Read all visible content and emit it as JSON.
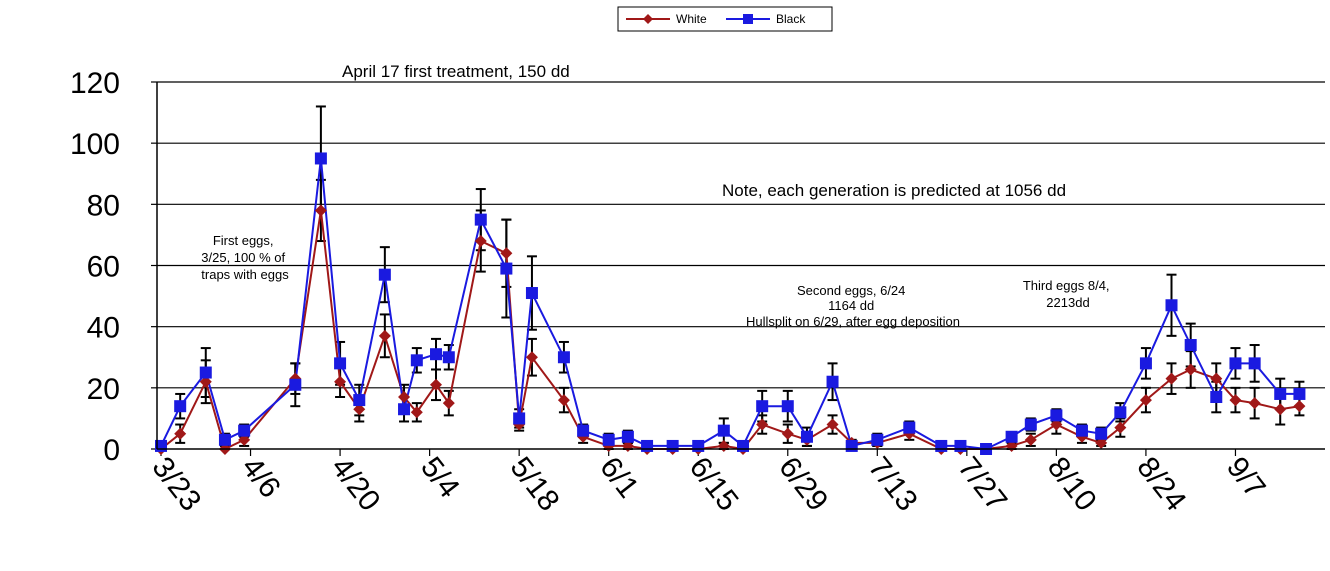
{
  "chart_data": {
    "type": "line",
    "ylabel": "",
    "ylim": [
      0,
      120
    ],
    "yticks": [
      0,
      20,
      40,
      60,
      80,
      100,
      120
    ],
    "xlim": [
      "2008-03-23",
      "2008-09-21"
    ],
    "xticks": [
      "3/23",
      "4/6",
      "4/20",
      "5/4",
      "5/18",
      "6/1",
      "6/15",
      "6/29",
      "7/13",
      "7/27",
      "8/10",
      "8/24",
      "9/7"
    ],
    "grid": "horizontal",
    "legend": "top-center",
    "series": [
      {
        "name": "White",
        "color": "#a01818",
        "marker": "diamond",
        "points": [
          {
            "x": "2008-03-23",
            "y": 0,
            "err": 0
          },
          {
            "x": "2008-03-26",
            "y": 5,
            "err": 3
          },
          {
            "x": "2008-03-30",
            "y": 22,
            "err": 7
          },
          {
            "x": "2008-04-02",
            "y": 0,
            "err": 0
          },
          {
            "x": "2008-04-05",
            "y": 3,
            "err": 2
          },
          {
            "x": "2008-04-13",
            "y": 23,
            "err": 5
          },
          {
            "x": "2008-04-17",
            "y": 78,
            "err": 10
          },
          {
            "x": "2008-04-20",
            "y": 22,
            "err": 5
          },
          {
            "x": "2008-04-23",
            "y": 13,
            "err": 4
          },
          {
            "x": "2008-04-27",
            "y": 37,
            "err": 7
          },
          {
            "x": "2008-04-30",
            "y": 17,
            "err": 4
          },
          {
            "x": "2008-05-02",
            "y": 12,
            "err": 3
          },
          {
            "x": "2008-05-05",
            "y": 21,
            "err": 5
          },
          {
            "x": "2008-05-07",
            "y": 15,
            "err": 4
          },
          {
            "x": "2008-05-12",
            "y": 68,
            "err": 10
          },
          {
            "x": "2008-05-16",
            "y": 64,
            "err": 11
          },
          {
            "x": "2008-05-18",
            "y": 8,
            "err": 2
          },
          {
            "x": "2008-05-20",
            "y": 30,
            "err": 6
          },
          {
            "x": "2008-05-25",
            "y": 16,
            "err": 4
          },
          {
            "x": "2008-05-28",
            "y": 4,
            "err": 2
          },
          {
            "x": "2008-06-01",
            "y": 1,
            "err": 1
          },
          {
            "x": "2008-06-04",
            "y": 1,
            "err": 1
          },
          {
            "x": "2008-06-07",
            "y": 0,
            "err": 0
          },
          {
            "x": "2008-06-11",
            "y": 0,
            "err": 0
          },
          {
            "x": "2008-06-15",
            "y": 0,
            "err": 0
          },
          {
            "x": "2008-06-19",
            "y": 1,
            "err": 1
          },
          {
            "x": "2008-06-22",
            "y": 0,
            "err": 0
          },
          {
            "x": "2008-06-25",
            "y": 8,
            "err": 3
          },
          {
            "x": "2008-06-29",
            "y": 5,
            "err": 3
          },
          {
            "x": "2008-07-02",
            "y": 3,
            "err": 2
          },
          {
            "x": "2008-07-06",
            "y": 8,
            "err": 3
          },
          {
            "x": "2008-07-09",
            "y": 2,
            "err": 1
          },
          {
            "x": "2008-07-13",
            "y": 2,
            "err": 1
          },
          {
            "x": "2008-07-18",
            "y": 5,
            "err": 2
          },
          {
            "x": "2008-07-23",
            "y": 0,
            "err": 0
          },
          {
            "x": "2008-07-26",
            "y": 0,
            "err": 0
          },
          {
            "x": "2008-07-30",
            "y": 0,
            "err": 0
          },
          {
            "x": "2008-08-03",
            "y": 1,
            "err": 1
          },
          {
            "x": "2008-08-06",
            "y": 3,
            "err": 2
          },
          {
            "x": "2008-08-10",
            "y": 8,
            "err": 3
          },
          {
            "x": "2008-08-14",
            "y": 4,
            "err": 2
          },
          {
            "x": "2008-08-17",
            "y": 2,
            "err": 1
          },
          {
            "x": "2008-08-20",
            "y": 7,
            "err": 3
          },
          {
            "x": "2008-08-24",
            "y": 16,
            "err": 4
          },
          {
            "x": "2008-08-28",
            "y": 23,
            "err": 5
          },
          {
            "x": "2008-08-31",
            "y": 26,
            "err": 6
          },
          {
            "x": "2008-09-04",
            "y": 23,
            "err": 5
          },
          {
            "x": "2008-09-07",
            "y": 16,
            "err": 4
          },
          {
            "x": "2008-09-10",
            "y": 15,
            "err": 5
          },
          {
            "x": "2008-09-14",
            "y": 13,
            "err": 5
          },
          {
            "x": "2008-09-17",
            "y": 14,
            "err": 3
          }
        ]
      },
      {
        "name": "Black",
        "color": "#1a1ae0",
        "marker": "square",
        "points": [
          {
            "x": "2008-03-23",
            "y": 1,
            "err": 0
          },
          {
            "x": "2008-03-26",
            "y": 14,
            "err": 4
          },
          {
            "x": "2008-03-30",
            "y": 25,
            "err": 8
          },
          {
            "x": "2008-04-02",
            "y": 3,
            "err": 2
          },
          {
            "x": "2008-04-05",
            "y": 6,
            "err": 2
          },
          {
            "x": "2008-04-13",
            "y": 21,
            "err": 7
          },
          {
            "x": "2008-04-17",
            "y": 95,
            "err": 17
          },
          {
            "x": "2008-04-20",
            "y": 28,
            "err": 7
          },
          {
            "x": "2008-04-23",
            "y": 16,
            "err": 5
          },
          {
            "x": "2008-04-27",
            "y": 57,
            "err": 9
          },
          {
            "x": "2008-04-30",
            "y": 13,
            "err": 4
          },
          {
            "x": "2008-05-02",
            "y": 29,
            "err": 4
          },
          {
            "x": "2008-05-05",
            "y": 31,
            "err": 5
          },
          {
            "x": "2008-05-07",
            "y": 30,
            "err": 4
          },
          {
            "x": "2008-05-12",
            "y": 75,
            "err": 10
          },
          {
            "x": "2008-05-16",
            "y": 59,
            "err": 16
          },
          {
            "x": "2008-05-18",
            "y": 10,
            "err": 3
          },
          {
            "x": "2008-05-20",
            "y": 51,
            "err": 12
          },
          {
            "x": "2008-05-25",
            "y": 30,
            "err": 5
          },
          {
            "x": "2008-05-28",
            "y": 6,
            "err": 2
          },
          {
            "x": "2008-06-01",
            "y": 3,
            "err": 2
          },
          {
            "x": "2008-06-04",
            "y": 4,
            "err": 2
          },
          {
            "x": "2008-06-07",
            "y": 1,
            "err": 1
          },
          {
            "x": "2008-06-11",
            "y": 1,
            "err": 1
          },
          {
            "x": "2008-06-15",
            "y": 1,
            "err": 1
          },
          {
            "x": "2008-06-19",
            "y": 6,
            "err": 4
          },
          {
            "x": "2008-06-22",
            "y": 1,
            "err": 1
          },
          {
            "x": "2008-06-25",
            "y": 14,
            "err": 5
          },
          {
            "x": "2008-06-29",
            "y": 14,
            "err": 5
          },
          {
            "x": "2008-07-02",
            "y": 4,
            "err": 3
          },
          {
            "x": "2008-07-06",
            "y": 22,
            "err": 6
          },
          {
            "x": "2008-07-09",
            "y": 1,
            "err": 1
          },
          {
            "x": "2008-07-13",
            "y": 3,
            "err": 2
          },
          {
            "x": "2008-07-18",
            "y": 7,
            "err": 2
          },
          {
            "x": "2008-07-23",
            "y": 1,
            "err": 1
          },
          {
            "x": "2008-07-26",
            "y": 1,
            "err": 1
          },
          {
            "x": "2008-07-30",
            "y": 0,
            "err": 0
          },
          {
            "x": "2008-08-03",
            "y": 4,
            "err": 1
          },
          {
            "x": "2008-08-06",
            "y": 8,
            "err": 2
          },
          {
            "x": "2008-08-10",
            "y": 11,
            "err": 2
          },
          {
            "x": "2008-08-14",
            "y": 6,
            "err": 2
          },
          {
            "x": "2008-08-17",
            "y": 5,
            "err": 2
          },
          {
            "x": "2008-08-20",
            "y": 12,
            "err": 3
          },
          {
            "x": "2008-08-24",
            "y": 28,
            "err": 5
          },
          {
            "x": "2008-08-28",
            "y": 47,
            "err": 10
          },
          {
            "x": "2008-08-31",
            "y": 34,
            "err": 7
          },
          {
            "x": "2008-09-04",
            "y": 17,
            "err": 5
          },
          {
            "x": "2008-09-07",
            "y": 28,
            "err": 5
          },
          {
            "x": "2008-09-10",
            "y": 28,
            "err": 6
          },
          {
            "x": "2008-09-14",
            "y": 18,
            "err": 5
          },
          {
            "x": "2008-09-17",
            "y": 18,
            "err": 4
          }
        ]
      }
    ],
    "annotations": [
      {
        "lines": [
          "April 17 first treatment, 150 dd"
        ],
        "at": "top-left"
      },
      {
        "lines": [
          "Note, each generation is predicted at 1056 dd"
        ],
        "at": "upper-right"
      },
      {
        "lines": [
          "First eggs,",
          "3/25, 100 % of",
          "traps with eggs"
        ],
        "at": "left"
      },
      {
        "lines": [
          "Second eggs, 6/24",
          "1164 dd",
          "Hullsplit on 6/29, after egg deposition"
        ],
        "at": "center"
      },
      {
        "lines": [
          "Third eggs 8/4,",
          "2213dd"
        ],
        "at": "center-right"
      }
    ]
  }
}
